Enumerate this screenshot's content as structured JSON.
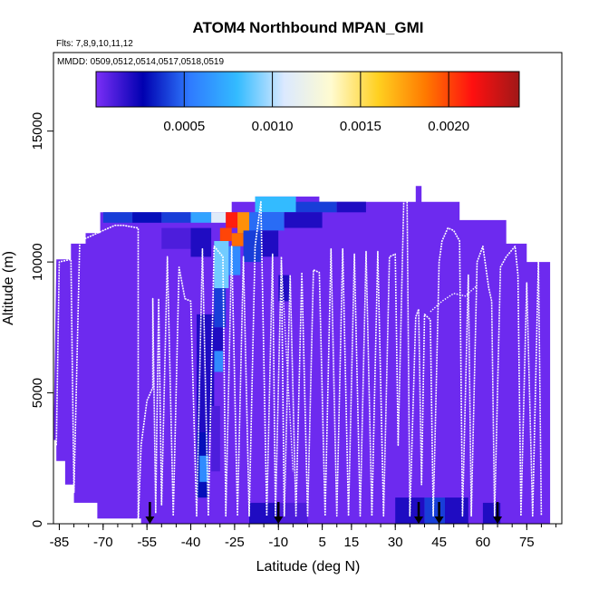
{
  "chart_data": {
    "type": "heatmap",
    "title": "ATOM4 Northbound MPAN_GMI",
    "subtitle_flights": "Flts: 7,8,9,10,11,12",
    "subtitle_dates": "MMDD: 0509,0512,0514,0517,0518,0519",
    "xlabel": "Latitude (deg N)",
    "ylabel": "Altitude (m)",
    "xlim": [
      -87,
      87
    ],
    "ylim": [
      0,
      18000
    ],
    "x_ticks": [
      -85,
      -70,
      -55,
      -40,
      -25,
      -10,
      5,
      15,
      30,
      45,
      60,
      75
    ],
    "x_tick_labels": [
      "-85",
      "-70",
      "-55",
      "-40",
      "-25",
      "-10",
      "5",
      "15",
      "30",
      "45",
      "60",
      "75"
    ],
    "y_ticks": [
      0,
      5000,
      10000,
      15000
    ],
    "y_tick_labels": [
      "0",
      "5000",
      "10000",
      "15000"
    ],
    "colorbar": {
      "range": [
        0,
        0.0024
      ],
      "ticks": [
        0.0005,
        0.001,
        0.0015,
        0.002
      ],
      "tick_labels": [
        "0.0005",
        "0.0010",
        "0.0015",
        "0.0020"
      ],
      "colors": [
        "#7b2ff7",
        "#0000b0",
        "#2f7bff",
        "#33bbff",
        "#dbe9ff",
        "#fffbd0",
        "#ffd020",
        "#ff7a00",
        "#ff1010",
        "#a01818"
      ]
    },
    "background_value": 3e-05,
    "curtain_boundary": [
      [
        -87,
        3200
      ],
      [
        -86,
        10100
      ],
      [
        -81,
        10100
      ],
      [
        -81,
        10700
      ],
      [
        -76,
        10700
      ],
      [
        -76,
        11100
      ],
      [
        -71,
        11100
      ],
      [
        -71,
        11900
      ],
      [
        -26,
        11900
      ],
      [
        -26,
        12300
      ],
      [
        -18,
        12300
      ],
      [
        -18,
        12500
      ],
      [
        4,
        12500
      ],
      [
        4,
        12300
      ],
      [
        37,
        12300
      ],
      [
        37,
        12900
      ],
      [
        39,
        12900
      ],
      [
        39,
        12300
      ],
      [
        52,
        12300
      ],
      [
        52,
        11600
      ],
      [
        68,
        11600
      ],
      [
        68,
        10700
      ],
      [
        75,
        10700
      ],
      [
        75,
        10000
      ],
      [
        83,
        10000
      ],
      [
        83,
        0
      ],
      [
        -57,
        0
      ],
      [
        -57,
        200
      ],
      [
        -72,
        200
      ],
      [
        -72,
        800
      ],
      [
        -80,
        800
      ],
      [
        -80,
        1500
      ],
      [
        -83,
        1500
      ],
      [
        -83,
        2400
      ],
      [
        -86,
        2400
      ],
      [
        -86,
        3200
      ]
    ],
    "enhanced_cells": [
      {
        "lat": [
          -70,
          -60
        ],
        "alt": [
          11500,
          11900
        ],
        "value": 0.0004
      },
      {
        "lat": [
          -60,
          -50
        ],
        "alt": [
          11500,
          11900
        ],
        "value": 0.0003
      },
      {
        "lat": [
          -50,
          -40
        ],
        "alt": [
          11500,
          11900
        ],
        "value": 0.0004
      },
      {
        "lat": [
          -40,
          -33
        ],
        "alt": [
          11500,
          11900
        ],
        "value": 0.0007
      },
      {
        "lat": [
          -33,
          -28
        ],
        "alt": [
          11500,
          11900
        ],
        "value": 0.0011
      },
      {
        "lat": [
          -28,
          -24
        ],
        "alt": [
          11300,
          11900
        ],
        "value": 0.0021
      },
      {
        "lat": [
          -24,
          -20
        ],
        "alt": [
          11100,
          11900
        ],
        "value": 0.0018
      },
      {
        "lat": [
          -30,
          -26
        ],
        "alt": [
          10800,
          11300
        ],
        "value": 0.002
      },
      {
        "lat": [
          -26,
          -22
        ],
        "alt": [
          10600,
          11100
        ],
        "value": 0.0019
      },
      {
        "lat": [
          -18,
          -4
        ],
        "alt": [
          11900,
          12500
        ],
        "value": 0.0008
      },
      {
        "lat": [
          -4,
          10
        ],
        "alt": [
          11900,
          12300
        ],
        "value": 0.0004
      },
      {
        "lat": [
          10,
          20
        ],
        "alt": [
          11900,
          12300
        ],
        "value": 0.0002
      },
      {
        "lat": [
          -20,
          -8
        ],
        "alt": [
          11200,
          11900
        ],
        "value": 0.0005
      },
      {
        "lat": [
          -8,
          5
        ],
        "alt": [
          11300,
          11900
        ],
        "value": 0.0002
      },
      {
        "lat": [
          -32,
          -27
        ],
        "alt": [
          9000,
          10800
        ],
        "value": 0.0009
      },
      {
        "lat": [
          -27,
          -23
        ],
        "alt": [
          9500,
          10600
        ],
        "value": 0.0006
      },
      {
        "lat": [
          -22,
          -16
        ],
        "alt": [
          10000,
          11200
        ],
        "value": 0.0004
      },
      {
        "lat": [
          -16,
          -10
        ],
        "alt": [
          10200,
          11200
        ],
        "value": 0.0002
      },
      {
        "lat": [
          -40,
          -33
        ],
        "alt": [
          10200,
          11300
        ],
        "value": 0.0002
      },
      {
        "lat": [
          -50,
          -40
        ],
        "alt": [
          10500,
          11300
        ],
        "value": 0.0001
      },
      {
        "lat": [
          -32,
          -28
        ],
        "alt": [
          7500,
          9000
        ],
        "value": 0.0004
      },
      {
        "lat": [
          -33,
          -29
        ],
        "alt": [
          6000,
          7500
        ],
        "value": 0.0002
      },
      {
        "lat": [
          -32,
          -29
        ],
        "alt": [
          5800,
          6600
        ],
        "value": 0.0006
      },
      {
        "lat": [
          -38,
          -32
        ],
        "alt": [
          3500,
          8000
        ],
        "value": 0.0002
      },
      {
        "lat": [
          -38,
          -34
        ],
        "alt": [
          1000,
          3500
        ],
        "value": 0.0003
      },
      {
        "lat": [
          -37,
          -34
        ],
        "alt": [
          1600,
          2600
        ],
        "value": 0.0006
      },
      {
        "lat": [
          -33,
          -30
        ],
        "alt": [
          2000,
          4500
        ],
        "value": 0.0001
      },
      {
        "lat": [
          -10,
          -6
        ],
        "alt": [
          8500,
          9500
        ],
        "value": 0.0002
      },
      {
        "lat": [
          -20,
          -10
        ],
        "alt": [
          0,
          800
        ],
        "value": 0.0002
      },
      {
        "lat": [
          -10,
          0
        ],
        "alt": [
          0,
          800
        ],
        "value": 0.0001
      },
      {
        "lat": [
          30,
          40
        ],
        "alt": [
          0,
          1000
        ],
        "value": 0.0002
      },
      {
        "lat": [
          40,
          47
        ],
        "alt": [
          0,
          1000
        ],
        "value": 0.0004
      },
      {
        "lat": [
          47,
          55
        ],
        "alt": [
          0,
          1000
        ],
        "value": 0.0002
      },
      {
        "lat": [
          60,
          66
        ],
        "alt": [
          0,
          800
        ],
        "value": 0.0002
      }
    ],
    "flight_tracks": [
      [
        [
          -86,
          3000
        ],
        [
          -85,
          10000
        ],
        [
          -81,
          10100
        ],
        [
          -80,
          1200
        ],
        [
          -78,
          10800
        ],
        [
          -72,
          11100
        ],
        [
          -70,
          11200
        ],
        [
          -66,
          11400
        ],
        [
          -63,
          11400
        ],
        [
          -58,
          11300
        ],
        [
          -58,
          0
        ],
        [
          -57,
          3000
        ],
        [
          -55,
          4700
        ],
        [
          -53,
          5200
        ],
        [
          -53,
          8600
        ],
        [
          -52,
          400
        ],
        [
          -51,
          8600
        ],
        [
          -50,
          700
        ],
        [
          -48,
          10200
        ],
        [
          -46,
          300
        ],
        [
          -44,
          9800
        ],
        [
          -42,
          8600
        ],
        [
          -40,
          8500
        ],
        [
          -38,
          300
        ],
        [
          -36,
          10500
        ],
        [
          -34,
          300
        ],
        [
          -32,
          10600
        ],
        [
          -29,
          10200
        ],
        [
          -28,
          300
        ],
        [
          -26,
          10600
        ],
        [
          -24,
          300
        ],
        [
          -22,
          10200
        ],
        [
          -20,
          300
        ],
        [
          -18,
          10600
        ],
        [
          -16,
          12300
        ],
        [
          -14,
          300
        ],
        [
          -12,
          10300
        ],
        [
          -11,
          300
        ],
        [
          -9,
          10200
        ],
        [
          -8,
          300
        ],
        [
          -6,
          9500
        ],
        [
          -4,
          300
        ],
        [
          -2,
          9600
        ],
        [
          0,
          300
        ],
        [
          2,
          9700
        ],
        [
          4,
          9600
        ],
        [
          6,
          300
        ],
        [
          8,
          10500
        ],
        [
          10,
          300
        ],
        [
          12,
          10500
        ],
        [
          14,
          300
        ],
        [
          16,
          10300
        ],
        [
          18,
          300
        ],
        [
          20,
          10400
        ],
        [
          22,
          300
        ],
        [
          24,
          10400
        ],
        [
          26,
          300
        ],
        [
          28,
          10200
        ],
        [
          30,
          10300
        ],
        [
          31,
          3000
        ],
        [
          33,
          12800
        ],
        [
          34,
          12900
        ],
        [
          35,
          300
        ],
        [
          37,
          7900
        ],
        [
          38,
          8200
        ],
        [
          39,
          1500
        ],
        [
          40,
          8000
        ],
        [
          42,
          7800
        ],
        [
          43,
          300
        ],
        [
          45,
          10000
        ],
        [
          46,
          10800
        ],
        [
          48,
          11300
        ],
        [
          50,
          11200
        ],
        [
          52,
          10800
        ],
        [
          53,
          300
        ],
        [
          55,
          9500
        ],
        [
          56,
          300
        ],
        [
          58,
          10000
        ],
        [
          60,
          10600
        ],
        [
          62,
          9000
        ],
        [
          63,
          8500
        ],
        [
          64,
          300
        ],
        [
          66,
          9800
        ],
        [
          68,
          10200
        ],
        [
          71,
          10600
        ],
        [
          72,
          9500
        ],
        [
          73,
          300
        ],
        [
          75,
          9200
        ],
        [
          77,
          300
        ],
        [
          79,
          10100
        ],
        [
          80,
          300
        ]
      ]
    ],
    "flight_tracks_secondary": [
      [
        [
          42,
          8100
        ],
        [
          46,
          8500
        ],
        [
          50,
          8800
        ],
        [
          54,
          8700
        ],
        [
          58,
          9100
        ]
      ],
      [
        [
          -9,
          10000
        ],
        [
          -8,
          8000
        ],
        [
          -7,
          6000
        ],
        [
          -6,
          4000
        ],
        [
          -5,
          2000
        ]
      ]
    ],
    "arrow_latitudes": [
      -54,
      -10,
      38,
      45,
      65
    ]
  }
}
